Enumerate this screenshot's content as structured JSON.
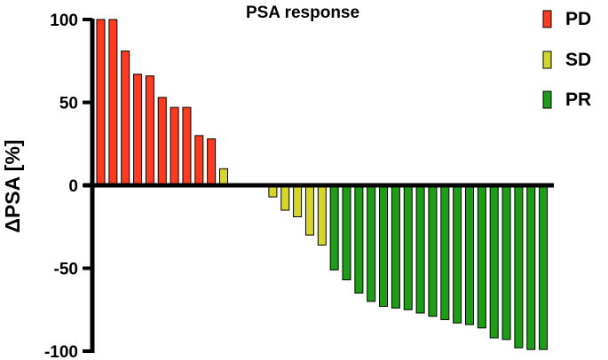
{
  "chart_data": {
    "type": "bar",
    "title": "PSA response",
    "xlabel": "",
    "ylabel": "ΔPSA [%]",
    "ylim": [
      -100,
      100
    ],
    "yticks": [
      100,
      50,
      0,
      -50,
      -100
    ],
    "grid": false,
    "legend_position": "top-right",
    "legend": [
      {
        "name": "PD",
        "color": "#ff3b1f"
      },
      {
        "name": "SD",
        "color": "#d6d62a"
      },
      {
        "name": "PR",
        "color": "#1e9e16"
      }
    ],
    "bars": [
      {
        "value": 100,
        "group": "PD"
      },
      {
        "value": 100,
        "group": "PD"
      },
      {
        "value": 81,
        "group": "PD"
      },
      {
        "value": 67,
        "group": "PD"
      },
      {
        "value": 66,
        "group": "PD"
      },
      {
        "value": 53,
        "group": "PD"
      },
      {
        "value": 47,
        "group": "PD"
      },
      {
        "value": 47,
        "group": "PD"
      },
      {
        "value": 30,
        "group": "PD"
      },
      {
        "value": 28,
        "group": "PD"
      },
      {
        "value": 10,
        "group": "SD"
      },
      {
        "value": 1,
        "group": "SD"
      },
      {
        "value": 0,
        "group": "SD"
      },
      {
        "value": 0,
        "group": "SD"
      },
      {
        "value": -7,
        "group": "SD"
      },
      {
        "value": -15,
        "group": "SD"
      },
      {
        "value": -19,
        "group": "SD"
      },
      {
        "value": -30,
        "group": "SD"
      },
      {
        "value": -36,
        "group": "SD"
      },
      {
        "value": -51,
        "group": "PR"
      },
      {
        "value": -57,
        "group": "PR"
      },
      {
        "value": -65,
        "group": "PR"
      },
      {
        "value": -70,
        "group": "PR"
      },
      {
        "value": -73,
        "group": "PR"
      },
      {
        "value": -74,
        "group": "PR"
      },
      {
        "value": -75,
        "group": "PR"
      },
      {
        "value": -77,
        "group": "PR"
      },
      {
        "value": -79,
        "group": "PR"
      },
      {
        "value": -81,
        "group": "PR"
      },
      {
        "value": -83,
        "group": "PR"
      },
      {
        "value": -84,
        "group": "PR"
      },
      {
        "value": -86,
        "group": "PR"
      },
      {
        "value": -92,
        "group": "PR"
      },
      {
        "value": -93,
        "group": "PR"
      },
      {
        "value": -98,
        "group": "PR"
      },
      {
        "value": -99,
        "group": "PR"
      },
      {
        "value": -99,
        "group": "PR"
      }
    ]
  }
}
